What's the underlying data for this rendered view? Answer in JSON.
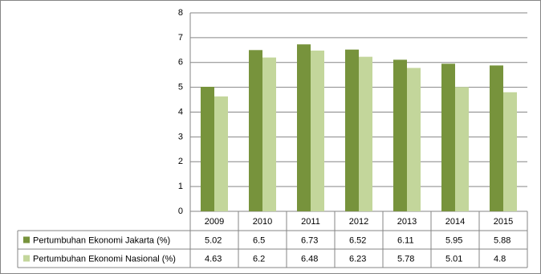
{
  "chart_data": {
    "type": "bar",
    "categories": [
      "2009",
      "2010",
      "2011",
      "2012",
      "2013",
      "2014",
      "2015"
    ],
    "series": [
      {
        "name": "Pertumbuhan Ekonomi Jakarta (%)",
        "color": "#77933c",
        "values": [
          5.02,
          6.5,
          6.73,
          6.52,
          6.11,
          5.95,
          5.88
        ]
      },
      {
        "name": "Pertumbuhan Ekonomi Nasional (%)",
        "color": "#c3d69b",
        "values": [
          4.63,
          6.2,
          6.48,
          6.23,
          5.78,
          5.01,
          4.8
        ]
      }
    ],
    "ylim": [
      0,
      8
    ],
    "yticks": [
      0,
      1,
      2,
      3,
      4,
      5,
      6,
      7,
      8
    ],
    "grid": true
  }
}
